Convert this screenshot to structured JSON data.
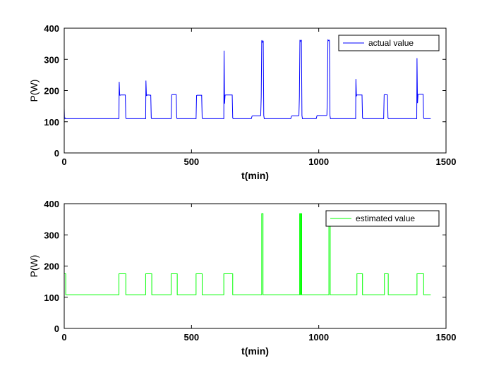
{
  "chart_data": [
    {
      "type": "line",
      "xlabel": "t(min)",
      "ylabel": "P(W)",
      "xlim": [
        0,
        1500
      ],
      "ylim": [
        0,
        400
      ],
      "xticks": [
        0,
        500,
        1000,
        1500
      ],
      "yticks": [
        0,
        100,
        200,
        300,
        400
      ],
      "legend": "top-right",
      "grid": false,
      "series": [
        {
          "name": "actual  value",
          "color": "#0000ff",
          "x": [
            0,
            1,
            4,
            5,
            6,
            215,
            216,
            218,
            220,
            222,
            240,
            242,
            244,
            320,
            321,
            323,
            325,
            327,
            340,
            342,
            344,
            420,
            422,
            424,
            440,
            442,
            444,
            518,
            520,
            522,
            540,
            542,
            544,
            627,
            628,
            630,
            632,
            634,
            660,
            662,
            664,
            735,
            738,
            740,
            770,
            772,
            774,
            776,
            778,
            780,
            782,
            784,
            786,
            890,
            893,
            895,
            920,
            922,
            924,
            926,
            928,
            930,
            932,
            934,
            936,
            990,
            993,
            995,
            1030,
            1032,
            1034,
            1036,
            1038,
            1040,
            1042,
            1044,
            1046,
            1145,
            1146,
            1148,
            1150,
            1152,
            1170,
            1172,
            1174,
            1255,
            1257,
            1259,
            1270,
            1272,
            1274,
            1385,
            1386,
            1388,
            1390,
            1392,
            1410,
            1412,
            1414,
            1440
          ],
          "values": [
            142,
            110,
            112,
            110,
            110,
            110,
            228,
            185,
            185,
            186,
            186,
            112,
            110,
            110,
            232,
            184,
            185,
            186,
            185,
            112,
            110,
            110,
            186,
            187,
            187,
            112,
            110,
            110,
            184,
            185,
            185,
            112,
            110,
            110,
            328,
            158,
            185,
            186,
            186,
            112,
            110,
            110,
            118,
            119,
            119,
            120,
            180,
            358,
            355,
            360,
            358,
            120,
            110,
            110,
            118,
            119,
            119,
            120,
            180,
            360,
            358,
            362,
            360,
            120,
            110,
            110,
            119,
            120,
            120,
            121,
            180,
            362,
            360,
            362,
            360,
            120,
            110,
            110,
            237,
            183,
            186,
            186,
            186,
            112,
            110,
            110,
            186,
            187,
            186,
            112,
            110,
            110,
            304,
            160,
            187,
            188,
            188,
            112,
            110,
            110
          ]
        }
      ]
    },
    {
      "type": "line",
      "xlabel": "t(min)",
      "ylabel": "P(W)",
      "xlim": [
        0,
        1500
      ],
      "ylim": [
        0,
        400
      ],
      "xticks": [
        0,
        500,
        1000,
        1500
      ],
      "yticks": [
        0,
        100,
        200,
        300,
        400
      ],
      "legend": "top-right",
      "grid": false,
      "series": [
        {
          "name": "estimated value",
          "color": "#00ff00",
          "x": [
            0,
            0,
            6,
            6,
            215,
            215,
            242,
            242,
            320,
            320,
            344,
            344,
            420,
            420,
            444,
            444,
            518,
            518,
            542,
            542,
            627,
            627,
            662,
            662,
            776,
            776,
            781,
            781,
            925,
            925,
            928,
            928,
            930,
            930,
            933,
            933,
            1040,
            1040,
            1045,
            1045,
            1150,
            1150,
            1172,
            1172,
            1258,
            1258,
            1273,
            1273,
            1386,
            1386,
            1412,
            1412,
            1440
          ],
          "values": [
            175,
            175,
            175,
            108,
            108,
            175,
            175,
            108,
            108,
            175,
            175,
            108,
            108,
            175,
            175,
            108,
            108,
            175,
            175,
            108,
            108,
            175,
            175,
            108,
            108,
            368,
            368,
            108,
            108,
            368,
            368,
            108,
            108,
            368,
            368,
            108,
            108,
            360,
            360,
            108,
            108,
            175,
            175,
            108,
            108,
            175,
            175,
            108,
            108,
            175,
            175,
            108,
            108
          ]
        }
      ]
    }
  ]
}
